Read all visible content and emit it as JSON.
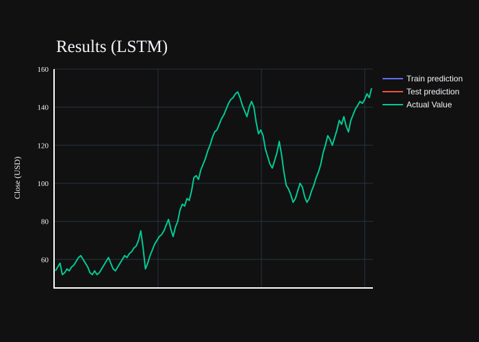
{
  "chart_data": {
    "type": "line",
    "title": "Results (LSTM)",
    "xlabel": "",
    "ylabel": "Close (USD)",
    "ylim": [
      45,
      160
    ],
    "y_ticks": [
      60,
      80,
      100,
      120,
      140,
      160
    ],
    "x_tick_labels": [],
    "grid": true,
    "legend_position": "top-right",
    "background": "#111111",
    "grid_color": "#283442",
    "series": [
      {
        "name": "Train prediction",
        "color": "#636efa",
        "values": []
      },
      {
        "name": "Test prediction",
        "color": "#ef553b",
        "values": []
      },
      {
        "name": "Actual Value",
        "color": "#00cc96",
        "values": [
          54,
          56,
          58,
          52,
          53,
          55,
          54,
          56,
          57,
          59,
          61,
          62,
          60,
          58,
          56,
          53,
          52,
          54,
          52,
          53,
          55,
          57,
          59,
          61,
          58,
          55,
          54,
          56,
          58,
          60,
          62,
          61,
          63,
          64,
          66,
          67,
          70,
          75,
          66,
          55,
          58,
          62,
          65,
          68,
          70,
          72,
          73,
          75,
          78,
          81,
          76,
          72,
          77,
          80,
          86,
          89,
          88,
          92,
          91,
          96,
          103,
          104,
          102,
          107,
          110,
          113,
          117,
          120,
          124,
          127,
          128,
          131,
          134,
          136,
          139,
          142,
          144,
          145,
          147,
          148,
          145,
          141,
          138,
          135,
          140,
          143,
          140,
          132,
          126,
          128,
          125,
          118,
          114,
          110,
          108,
          112,
          116,
          122,
          115,
          106,
          99,
          97,
          94,
          90,
          92,
          96,
          100,
          98,
          93,
          90,
          92,
          96,
          99,
          103,
          106,
          110,
          116,
          120,
          125,
          123,
          120,
          124,
          128,
          133,
          131,
          135,
          130,
          127,
          133,
          136,
          139,
          141,
          143,
          142,
          144,
          147,
          145,
          150
        ]
      }
    ]
  }
}
